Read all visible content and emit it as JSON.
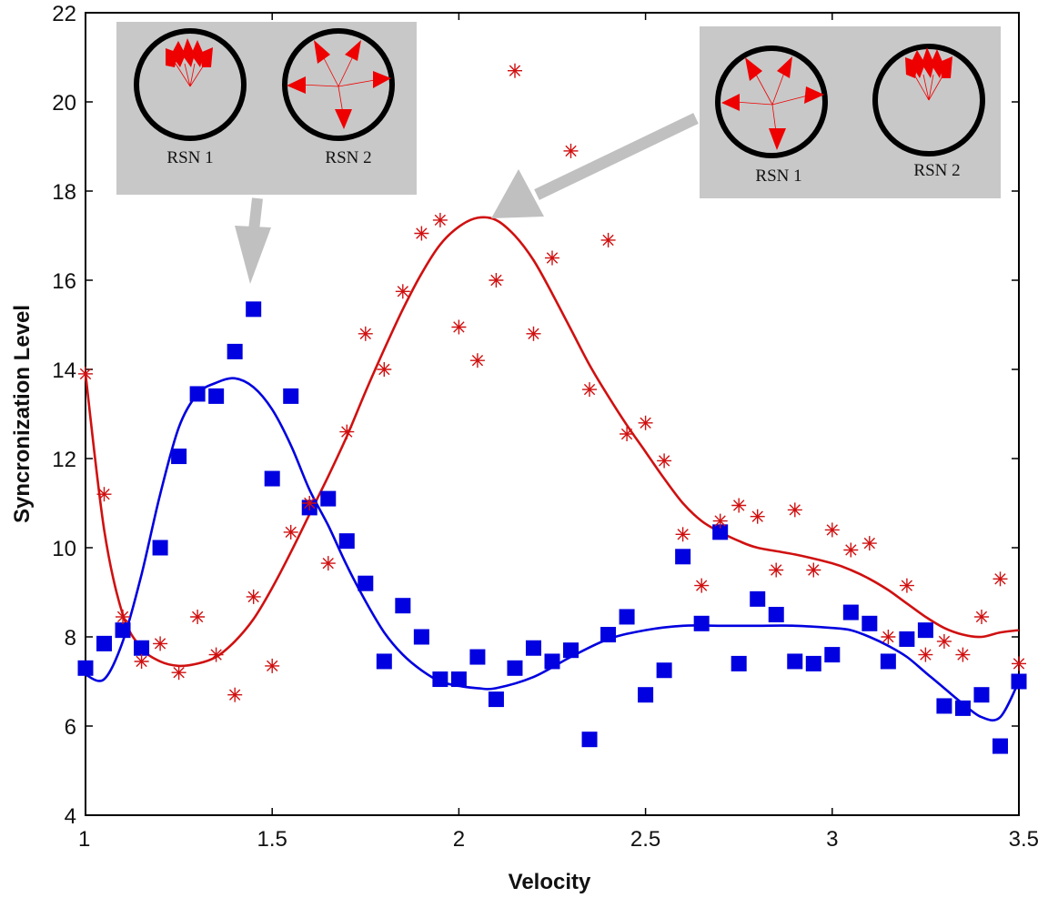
{
  "chart_data": {
    "type": "scatter",
    "title": "",
    "xlabel": "Velocity",
    "ylabel": "Syncronization Level",
    "xlim": [
      1,
      3.5
    ],
    "ylim": [
      4,
      22
    ],
    "xticks": [
      1,
      1.5,
      2,
      2.5,
      3,
      3.5
    ],
    "xtick_labels": [
      "1",
      "1.5",
      "2",
      "2.5",
      "3",
      "3.5"
    ],
    "yticks": [
      4,
      6,
      8,
      10,
      12,
      14,
      16,
      18,
      20,
      22
    ],
    "ytick_labels": [
      "4",
      "6",
      "8",
      "10",
      "12",
      "14",
      "16",
      "18",
      "20",
      "22"
    ],
    "grid": false,
    "colors": {
      "blue": "#0000e0",
      "red": "#d01010",
      "inset_bg": "#c8c8c8",
      "arrow": "#c0c0c0"
    },
    "series": [
      {
        "marker": "square",
        "color": "#0000e0",
        "x": [
          1.0,
          1.05,
          1.1,
          1.15,
          1.2,
          1.25,
          1.3,
          1.35,
          1.4,
          1.45,
          1.5,
          1.55,
          1.6,
          1.65,
          1.7,
          1.75,
          1.8,
          1.85,
          1.9,
          1.95,
          2.0,
          2.05,
          2.1,
          2.15,
          2.2,
          2.25,
          2.3,
          2.35,
          2.4,
          2.45,
          2.5,
          2.55,
          2.6,
          2.65,
          2.7,
          2.75,
          2.8,
          2.85,
          2.9,
          2.95,
          3.0,
          3.05,
          3.1,
          3.15,
          3.2,
          3.25,
          3.3,
          3.35,
          3.4,
          3.45,
          3.5
        ],
        "y": [
          7.3,
          7.85,
          8.15,
          7.75,
          10.0,
          12.05,
          13.45,
          13.4,
          14.4,
          15.35,
          11.55,
          13.4,
          10.9,
          11.1,
          10.15,
          9.2,
          7.45,
          8.7,
          8.0,
          7.05,
          7.05,
          7.55,
          6.6,
          7.3,
          7.75,
          7.45,
          7.7,
          5.7,
          8.05,
          8.45,
          6.7,
          7.25,
          9.8,
          8.3,
          10.35,
          7.4,
          8.85,
          8.5,
          7.45,
          7.4,
          7.6,
          8.55,
          8.3,
          7.45,
          7.95,
          8.15,
          6.45,
          6.4,
          6.7,
          5.55,
          7.0
        ]
      },
      {
        "marker": "asterisk",
        "color": "#d01010",
        "x": [
          1.0,
          1.05,
          1.1,
          1.15,
          1.2,
          1.25,
          1.3,
          1.35,
          1.4,
          1.45,
          1.5,
          1.55,
          1.6,
          1.65,
          1.7,
          1.75,
          1.8,
          1.85,
          1.9,
          1.95,
          2.0,
          2.05,
          2.1,
          2.15,
          2.2,
          2.25,
          2.3,
          2.35,
          2.4,
          2.45,
          2.5,
          2.55,
          2.6,
          2.65,
          2.7,
          2.75,
          2.8,
          2.85,
          2.9,
          2.95,
          3.0,
          3.05,
          3.1,
          3.15,
          3.2,
          3.25,
          3.3,
          3.35,
          3.4,
          3.45,
          3.5
        ],
        "y": [
          13.9,
          11.2,
          8.45,
          7.45,
          7.85,
          7.2,
          8.45,
          7.6,
          6.7,
          8.9,
          7.35,
          10.35,
          11.0,
          9.65,
          12.6,
          14.8,
          14.0,
          15.75,
          17.05,
          17.35,
          14.95,
          14.2,
          16.0,
          20.7,
          14.8,
          16.5,
          18.9,
          13.55,
          16.9,
          12.55,
          12.8,
          11.95,
          10.3,
          9.15,
          10.6,
          10.95,
          10.7,
          9.5,
          10.85,
          9.5,
          10.4,
          9.95,
          10.1,
          8.0,
          9.15,
          7.6,
          7.9,
          7.6,
          8.45,
          9.3,
          7.4
        ]
      }
    ],
    "fit_curves": [
      {
        "color": "#0000e0",
        "x": [
          1.0,
          1.05,
          1.1,
          1.15,
          1.2,
          1.25,
          1.3,
          1.35,
          1.4,
          1.45,
          1.5,
          1.55,
          1.6,
          1.65,
          1.7,
          1.75,
          1.8,
          1.85,
          1.9,
          1.95,
          2.0,
          2.05,
          2.1,
          2.2,
          2.3,
          2.4,
          2.5,
          2.6,
          2.7,
          2.8,
          2.9,
          3.0,
          3.05,
          3.1,
          3.15,
          3.2,
          3.25,
          3.3,
          3.35,
          3.4,
          3.45,
          3.5
        ],
        "y": [
          7.15,
          7.05,
          7.9,
          9.4,
          11.2,
          12.7,
          13.45,
          13.7,
          13.8,
          13.6,
          13.1,
          12.3,
          11.3,
          10.5,
          9.6,
          8.8,
          8.1,
          7.6,
          7.25,
          7.0,
          6.9,
          6.85,
          6.85,
          7.1,
          7.55,
          7.95,
          8.15,
          8.25,
          8.25,
          8.25,
          8.25,
          8.2,
          8.15,
          8.0,
          7.8,
          7.55,
          7.2,
          6.85,
          6.5,
          6.2,
          6.2,
          7.0
        ]
      },
      {
        "color": "#d01010",
        "x": [
          1.0,
          1.05,
          1.1,
          1.15,
          1.2,
          1.25,
          1.3,
          1.35,
          1.4,
          1.45,
          1.5,
          1.55,
          1.6,
          1.65,
          1.7,
          1.75,
          1.8,
          1.85,
          1.9,
          1.95,
          2.0,
          2.05,
          2.1,
          2.15,
          2.2,
          2.25,
          2.3,
          2.35,
          2.4,
          2.45,
          2.5,
          2.55,
          2.6,
          2.65,
          2.7,
          2.75,
          2.8,
          2.9,
          3.0,
          3.05,
          3.1,
          3.15,
          3.2,
          3.25,
          3.3,
          3.35,
          3.4,
          3.45,
          3.5
        ],
        "y": [
          13.9,
          10.4,
          8.5,
          7.75,
          7.45,
          7.35,
          7.4,
          7.55,
          7.9,
          8.4,
          9.1,
          9.9,
          10.75,
          11.6,
          12.5,
          13.5,
          14.45,
          15.35,
          16.15,
          16.8,
          17.2,
          17.4,
          17.35,
          17.0,
          16.45,
          15.7,
          14.9,
          14.1,
          13.4,
          12.75,
          12.15,
          11.55,
          11.0,
          10.6,
          10.35,
          10.15,
          10.0,
          9.85,
          9.65,
          9.5,
          9.3,
          9.05,
          8.75,
          8.45,
          8.2,
          8.05,
          8.0,
          8.1,
          8.15
        ]
      }
    ],
    "insets": [
      {
        "labels": [
          "RSN 1",
          "RSN 2"
        ],
        "rsn1_state": "clustered",
        "rsn2_state": "dispersed"
      },
      {
        "labels": [
          "RSN 1",
          "RSN 2"
        ],
        "rsn1_state": "dispersed",
        "rsn2_state": "clustered"
      }
    ]
  }
}
